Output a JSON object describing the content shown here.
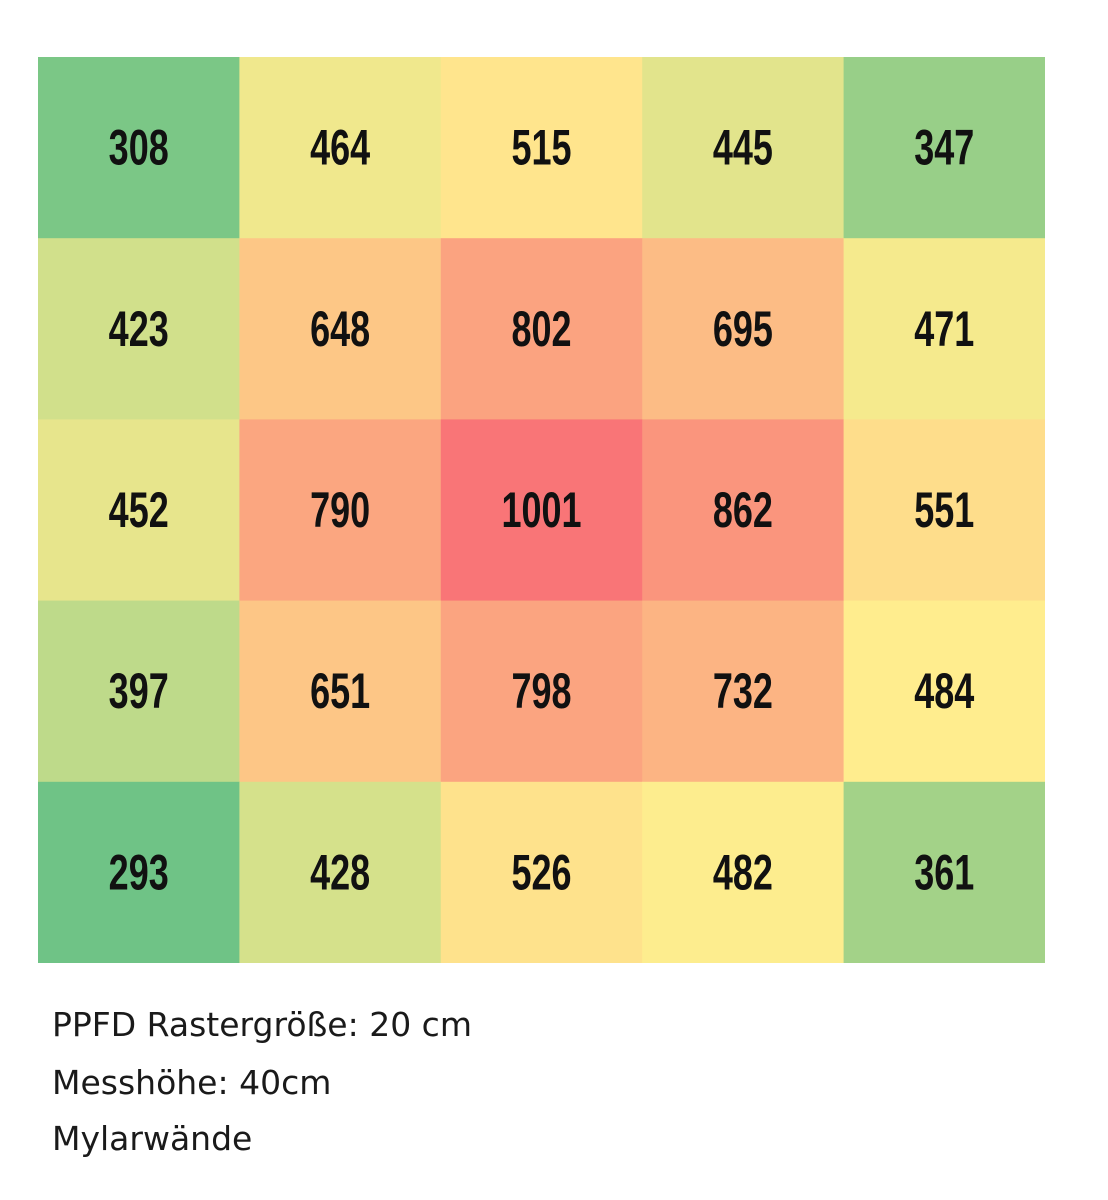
{
  "chart_data": {
    "type": "heatmap",
    "rows": 5,
    "columns": 5,
    "values": [
      [
        308,
        464,
        515,
        445,
        347
      ],
      [
        423,
        648,
        802,
        695,
        471
      ],
      [
        452,
        790,
        1001,
        862,
        551
      ],
      [
        397,
        651,
        798,
        732,
        484
      ],
      [
        293,
        428,
        526,
        482,
        361
      ]
    ],
    "color_scale": {
      "low": "#63be7b",
      "mid": "#ffeb84",
      "high": "#f8696b",
      "mid_rule": "median"
    },
    "grid": false
  },
  "caption": {
    "line1": "PPFD Rastergröße: 20 cm",
    "line2": "Messhöhe: 40cm",
    "line3": "Mylarwände"
  }
}
